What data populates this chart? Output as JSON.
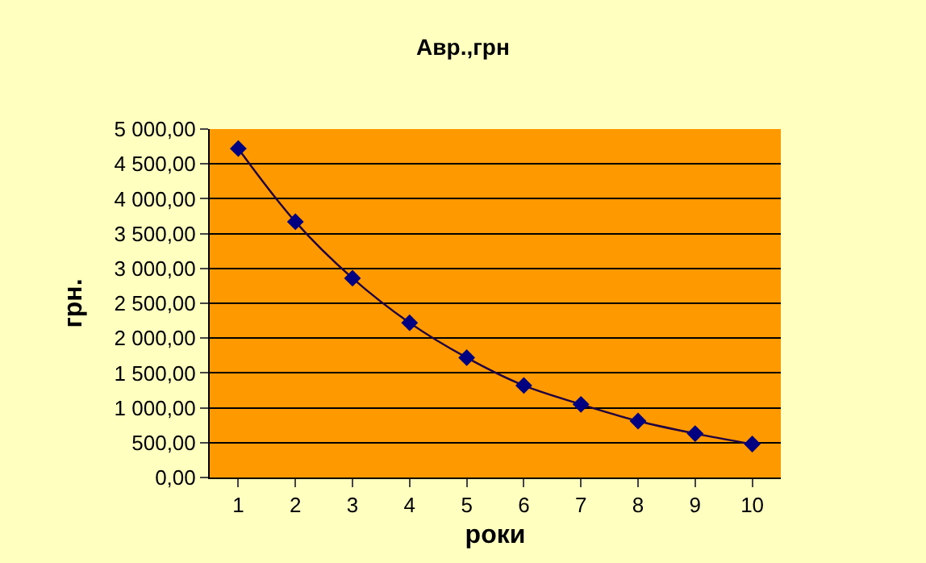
{
  "chart_data": {
    "type": "line",
    "title": "Авр.,грн",
    "xlabel": "роки",
    "ylabel": "грн.",
    "categories": [
      "1",
      "2",
      "3",
      "4",
      "5",
      "6",
      "7",
      "8",
      "9",
      "10"
    ],
    "series": [
      {
        "color": "#000080",
        "values": [
          4720,
          3670,
          2860,
          2220,
          1720,
          1320,
          1050,
          810,
          630,
          480
        ]
      }
    ],
    "ylim": [
      0,
      5000
    ],
    "yticks": [
      {
        "value": 0,
        "label": "0,00"
      },
      {
        "value": 500,
        "label": "500,00"
      },
      {
        "value": 1000,
        "label": "1 000,00"
      },
      {
        "value": 1500,
        "label": "1 500,00"
      },
      {
        "value": 2000,
        "label": "2 000,00"
      },
      {
        "value": 2500,
        "label": "2 500,00"
      },
      {
        "value": 3000,
        "label": "3 000,00"
      },
      {
        "value": 3500,
        "label": "3 500,00"
      },
      {
        "value": 4000,
        "label": "4 000,00"
      },
      {
        "value": 4500,
        "label": "4 500,00"
      },
      {
        "value": 5000,
        "label": "5 000,00"
      }
    ],
    "grid": "y",
    "marker": "diamond",
    "line_style": "solid"
  }
}
